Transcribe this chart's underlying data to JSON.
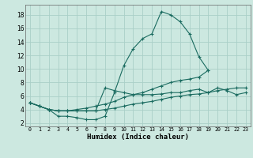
{
  "xlabel": "Humidex (Indice chaleur)",
  "bg_color": "#cce8e0",
  "grid_color": "#aacfc8",
  "line_color": "#1a6b60",
  "xlim": [
    -0.5,
    23.5
  ],
  "ylim": [
    1.5,
    19.5
  ],
  "xticks": [
    0,
    1,
    2,
    3,
    4,
    5,
    6,
    7,
    8,
    9,
    10,
    11,
    12,
    13,
    14,
    15,
    16,
    17,
    18,
    19,
    20,
    21,
    22,
    23
  ],
  "yticks": [
    2,
    4,
    6,
    8,
    10,
    12,
    14,
    16,
    18
  ],
  "series": [
    {
      "x": [
        0,
        1,
        2,
        3,
        4,
        5,
        6,
        7,
        8,
        9,
        10,
        11,
        12,
        13,
        14,
        15,
        16,
        17,
        18,
        19,
        20,
        21,
        22,
        23
      ],
      "y": [
        5,
        4.5,
        4,
        3,
        3,
        2.8,
        2.5,
        2.5,
        3,
        6.5,
        10.5,
        13,
        14.5,
        15.2,
        18.5,
        18,
        17,
        15.2,
        11.8,
        9.8,
        null,
        null,
        null,
        null
      ]
    },
    {
      "x": [
        0,
        1,
        2,
        3,
        4,
        5,
        6,
        7,
        8,
        9,
        10,
        11,
        12,
        13,
        14,
        15,
        16,
        17,
        18,
        19,
        20,
        21,
        22,
        23
      ],
      "y": [
        5,
        4.5,
        4,
        3.8,
        3.8,
        4,
        4.2,
        4.5,
        4.8,
        5.2,
        5.8,
        6.2,
        6.5,
        7,
        7.5,
        8,
        8.3,
        8.5,
        8.8,
        9.8,
        null,
        null,
        null,
        null
      ]
    },
    {
      "x": [
        0,
        1,
        2,
        3,
        4,
        5,
        6,
        7,
        8,
        9,
        10,
        11,
        12,
        13,
        14,
        15,
        16,
        17,
        18,
        19,
        20,
        21,
        22,
        23
      ],
      "y": [
        5,
        4.5,
        4,
        3.8,
        3.8,
        3.8,
        3.8,
        3.8,
        4,
        4.2,
        4.5,
        4.8,
        5.0,
        5.2,
        5.5,
        5.8,
        6.0,
        6.2,
        6.3,
        6.5,
        6.8,
        7.0,
        7.2,
        7.2
      ]
    },
    {
      "x": [
        0,
        1,
        2,
        3,
        4,
        5,
        6,
        7,
        8,
        9,
        10,
        11,
        12,
        13,
        14,
        15,
        16,
        17,
        18,
        19,
        20,
        21,
        22,
        23
      ],
      "y": [
        5,
        4.5,
        4,
        3.8,
        3.8,
        3.8,
        3.8,
        3.8,
        7.2,
        6.8,
        6.5,
        6.2,
        6.2,
        6.2,
        6.3,
        6.5,
        6.5,
        6.8,
        7.0,
        6.5,
        7.2,
        6.8,
        6.2,
        6.5
      ]
    }
  ]
}
